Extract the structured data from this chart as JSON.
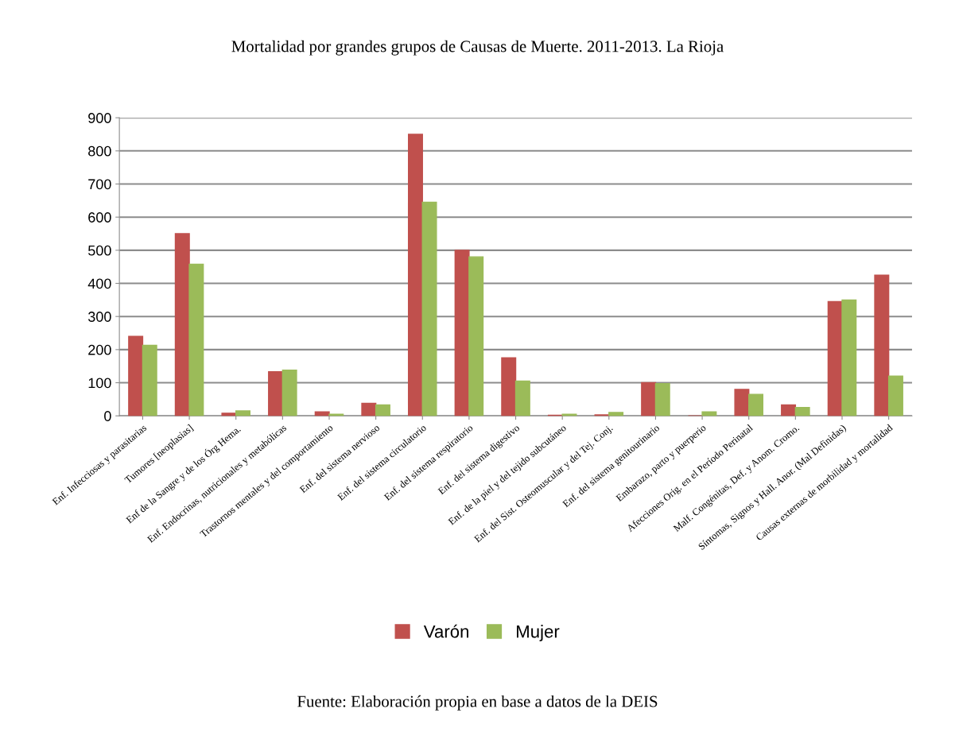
{
  "chart_data": {
    "type": "bar",
    "title": "Mortalidad por grandes grupos de Causas de Muerte. 2011-2013. La Rioja",
    "categories": [
      "Enf. Infecciosas y parasitarias",
      "Tumores [neoplasias]",
      "Enf de la Sangre y de los Órg Hema.",
      "Enf. Endocrinas, nutricionales y metabólicas",
      "Trastornos mentales y del comportamiento",
      "Enf. del sistema nervioso",
      "Enf. del sistema circulatorio",
      "Enf. del sistema respiratorio",
      "Enf. del sistema digestivo",
      "Enf. de la piel y del tejido subcutáneo",
      "Enf. del Sist. Osteomuscular y del Tej. Conj.",
      "Enf. del sistema genitourinario",
      "Embarazo, parto y puerperio",
      "Afecciones Orig. en el Período Perinatal",
      "Malf. Congénitas, Def. y Anom. Cromo.",
      "Síntomas, Signos y Hall. Anor. (Mal Definidas)",
      "Causas externas de morbilidad y mortalidad"
    ],
    "series": [
      {
        "name": "Varón",
        "color": "#c0504d",
        "values": [
          240,
          550,
          8,
          133,
          12,
          38,
          850,
          500,
          175,
          2,
          3,
          100,
          0,
          80,
          33,
          345,
          425
        ]
      },
      {
        "name": "Mujer",
        "color": "#9bbb59",
        "values": [
          213,
          458,
          15,
          138,
          5,
          33,
          645,
          480,
          105,
          5,
          10,
          97,
          12,
          65,
          25,
          350,
          120
        ]
      }
    ],
    "ylim": [
      0,
      900
    ],
    "yticks": [
      0,
      100,
      200,
      300,
      400,
      500,
      600,
      700,
      800,
      900
    ],
    "grid": "y",
    "legend": "bottom",
    "annotations": [
      "Fuente: Elaboración propia en base a datos de la DEIS"
    ]
  }
}
